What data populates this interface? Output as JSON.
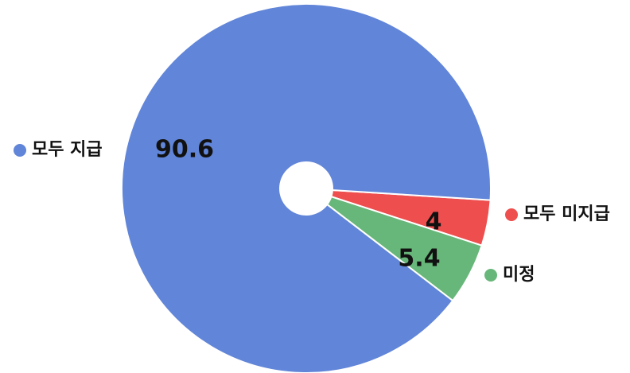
{
  "chart_data": {
    "type": "pie",
    "donut": true,
    "legend_placement": "outside-labels",
    "slices": [
      {
        "label": "모두 지급",
        "value": 90.6,
        "value_label": "90.6",
        "color": "#6185D8"
      },
      {
        "label": "모두 미지급",
        "value": 4,
        "value_label": "4",
        "color": "#EE4E4E"
      },
      {
        "label": "미정",
        "value": 5.4,
        "value_label": "5.4",
        "color": "#68B77A"
      }
    ]
  }
}
